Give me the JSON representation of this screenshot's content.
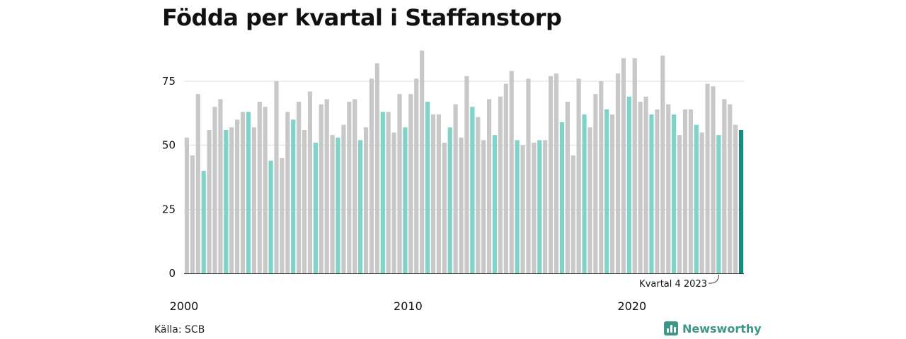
{
  "title": "Födda per kvartal i Staffanstorp",
  "source": "Källa: SCB",
  "brand": {
    "name": "Newsworthy",
    "icon": "bar-chart-logo-icon"
  },
  "colors": {
    "bar_default": "#c8c8c8",
    "bar_q4": "#7fd3c8",
    "bar_latest": "#1a8a7c",
    "gridline": "#dddddd",
    "axis": "#333333",
    "brand": "#3e9688"
  },
  "chart_data": {
    "type": "bar",
    "title": "Födda per kvartal i Staffanstorp",
    "xlabel": "",
    "ylabel": "",
    "ylim": [
      0,
      90
    ],
    "yticks": [
      0,
      25,
      50,
      75
    ],
    "xtick_labels": [
      "2000",
      "2010",
      "2020"
    ],
    "grid": true,
    "legend": "none",
    "highlight": "Q4 of each year in light teal; latest quarter in dark teal",
    "annotation": {
      "text": "Kvartal 4 2023",
      "target_year": 2023,
      "target_quarter": 4
    },
    "start_year": 2000,
    "values": [
      53,
      46,
      70,
      40,
      56,
      65,
      68,
      56,
      57,
      60,
      63,
      63,
      57,
      67,
      65,
      44,
      75,
      45,
      63,
      60,
      67,
      56,
      71,
      51,
      66,
      68,
      54,
      53,
      58,
      67,
      68,
      52,
      57,
      76,
      82,
      63,
      63,
      55,
      70,
      57,
      70,
      76,
      87,
      67,
      62,
      62,
      51,
      57,
      66,
      53,
      77,
      65,
      61,
      52,
      68,
      54,
      69,
      74,
      79,
      52,
      50,
      76,
      51,
      52,
      52,
      77,
      78,
      59,
      67,
      46,
      76,
      62,
      57,
      70,
      75,
      64,
      62,
      78,
      84,
      69,
      84,
      67,
      69,
      62,
      64,
      85,
      66,
      62,
      54,
      64,
      64,
      58,
      55,
      74,
      73,
      54,
      68,
      66,
      58,
      56
    ]
  }
}
